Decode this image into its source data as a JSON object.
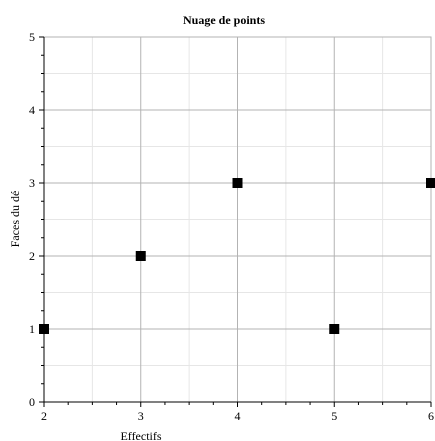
{
  "chart_data": {
    "type": "scatter",
    "title": "Nuage de points",
    "xlabel": "Effectifs",
    "ylabel": "Faces du dé",
    "xlim": [
      2,
      6
    ],
    "ylim": [
      0,
      5
    ],
    "xticks": [
      "2",
      "3",
      "4",
      "5",
      "6"
    ],
    "yticks": [
      "0",
      "1",
      "2",
      "3",
      "4",
      "5"
    ],
    "grid": true,
    "marker": "square",
    "marker_color": "#000000",
    "points": [
      {
        "x": 2,
        "y": 1
      },
      {
        "x": 3,
        "y": 2
      },
      {
        "x": 4,
        "y": 3
      },
      {
        "x": 5,
        "y": 1
      },
      {
        "x": 6,
        "y": 3
      }
    ]
  }
}
